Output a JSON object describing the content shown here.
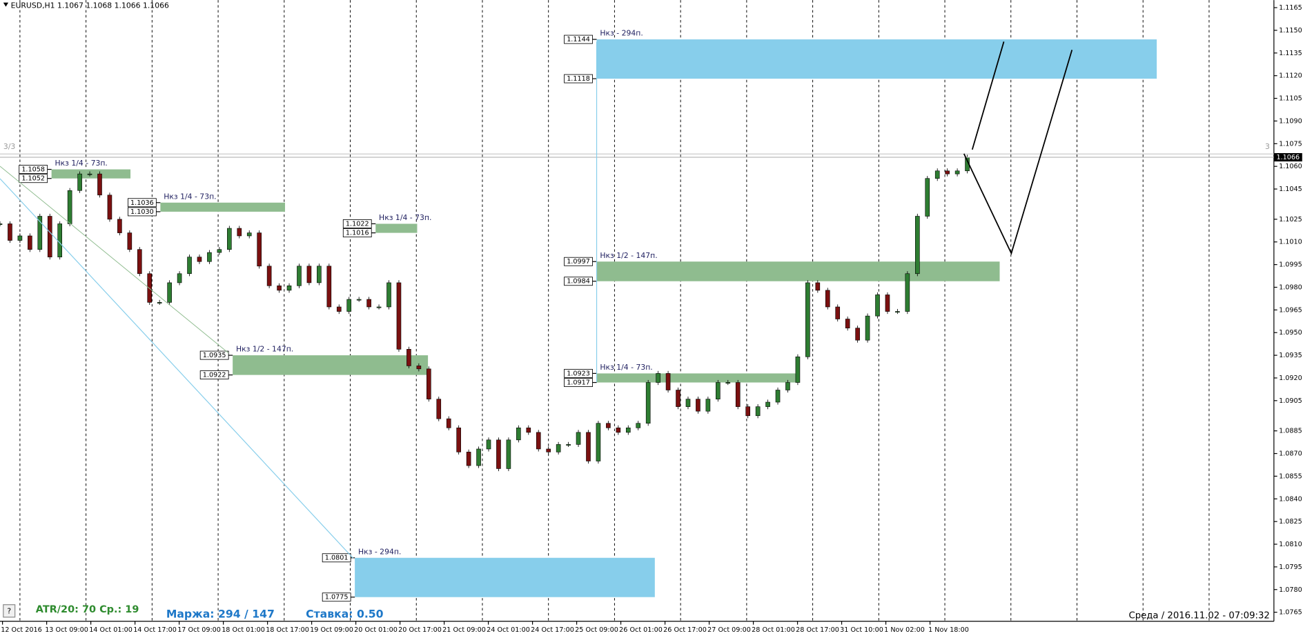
{
  "chart_data": {
    "type": "candlestick",
    "title": "EURUSD,H1  1.1067 1.1068 1.1066 1.1066",
    "window_left": "3/3",
    "window_right": "3",
    "current_price": 1.1066,
    "up_color": "#2e7d32",
    "down_color": "#7b1010",
    "ylim": [
      1.0759,
      1.117
    ],
    "yticks": [
      {
        "value": 1.1165,
        "label": "1.1165"
      },
      {
        "value": 1.115,
        "label": "1.1150"
      },
      {
        "value": 1.1135,
        "label": "1.1135"
      },
      {
        "value": 1.112,
        "label": "1.1120"
      },
      {
        "value": 1.1105,
        "label": "1.1105"
      },
      {
        "value": 1.109,
        "label": "1.1090"
      },
      {
        "value": 1.1075,
        "label": "1.1075"
      },
      {
        "value": 1.106,
        "label": "1.1060"
      },
      {
        "value": 1.1045,
        "label": "1.1045"
      },
      {
        "value": 1.1025,
        "label": "1.1025"
      },
      {
        "value": 1.101,
        "label": "1.1010"
      },
      {
        "value": 1.0995,
        "label": "1.0995"
      },
      {
        "value": 1.098,
        "label": "1.0980"
      },
      {
        "value": 1.0965,
        "label": "1.0965"
      },
      {
        "value": 1.095,
        "label": "1.0950"
      },
      {
        "value": 1.0935,
        "label": "1.0935"
      },
      {
        "value": 1.092,
        "label": "1.0920"
      },
      {
        "value": 1.0905,
        "label": "1.0905"
      },
      {
        "value": 1.0885,
        "label": "1.0885"
      },
      {
        "value": 1.087,
        "label": "1.0870"
      },
      {
        "value": 1.0855,
        "label": "1.0855"
      },
      {
        "value": 1.084,
        "label": "1.0840"
      },
      {
        "value": 1.0825,
        "label": "1.0825"
      },
      {
        "value": 1.081,
        "label": "1.0810"
      },
      {
        "value": 1.0795,
        "label": "1.0795"
      },
      {
        "value": 1.078,
        "label": "1.0780"
      },
      {
        "value": 1.0765,
        "label": "1.0765"
      }
    ],
    "time_labels": [
      "12 Oct 2016",
      "13 Oct 09:00",
      "14 Oct 01:00",
      "14 Oct 17:00",
      "17 Oct 09:00",
      "18 Oct 01:00",
      "18 Oct 17:00",
      "19 Oct 09:00",
      "20 Oct 01:00",
      "20 Oct 17:00",
      "21 Oct 09:00",
      "24 Oct 01:00",
      "24 Oct 17:00",
      "25 Oct 09:00",
      "26 Oct 01:00",
      "26 Oct 17:00",
      "27 Oct 09:00",
      "28 Oct 01:00",
      "28 Oct 17:00",
      "31 Oct 10:00",
      "1 Nov 02:00",
      "1 Nov 18:00"
    ],
    "prices": [
      1.1022,
      1.1011,
      1.1014,
      1.1005,
      1.1027,
      1.1,
      1.1022,
      1.1044,
      1.1055,
      1.1055,
      1.1041,
      1.1025,
      1.1016,
      1.1005,
      1.0989,
      1.097,
      1.097,
      1.0983,
      1.0989,
      1.1,
      1.0997,
      1.1003,
      1.1005,
      1.1019,
      1.1014,
      1.1016,
      1.0994,
      1.0981,
      1.0978,
      1.0981,
      1.0994,
      1.0983,
      1.0994,
      1.0967,
      1.0964,
      1.0972,
      1.0972,
      1.0967,
      1.0967,
      1.0983,
      1.0939,
      1.0928,
      1.0926,
      1.0906,
      1.0893,
      1.0887,
      1.0871,
      1.0862,
      1.0873,
      1.0879,
      1.086,
      1.0879,
      1.0887,
      1.0884,
      1.0873,
      1.0871,
      1.0876,
      1.0876,
      1.0884,
      1.0865,
      1.089,
      1.0887,
      1.0884,
      1.0887,
      1.089,
      1.0917,
      1.0923,
      1.0912,
      1.0901,
      1.0906,
      1.0898,
      1.0906,
      1.0917,
      1.0917,
      1.0901,
      1.0895,
      1.0901,
      1.0904,
      1.0912,
      1.0917,
      1.0934,
      1.0983,
      1.0978,
      1.0967,
      1.0959,
      1.0953,
      1.0945,
      1.0961,
      1.0975,
      1.0964,
      1.0964,
      1.0989,
      1.1027,
      1.1052,
      1.1057,
      1.1055,
      1.1057,
      1.1066
    ],
    "zones": [
      {
        "label": "Нкз 1/4 - 73п.",
        "top": 1.1058,
        "bottom": 1.1052,
        "color": "#8fbc8f"
      },
      {
        "label": "Нкз 1/4 - 73п.",
        "top": 1.1036,
        "bottom": {
          "value": 1.103,
          "label": "1.1030"
        },
        "color": "#8fbc8f"
      },
      {
        "label": "Нкз 1/4 - 73п.",
        "top": 1.1022,
        "bottom": 1.1016,
        "color": "#8fbc8f"
      },
      {
        "label": "Нкз 1/2 - 147п.",
        "top": 1.0935,
        "bottom": 1.0922,
        "color": "#8fbc8f"
      },
      {
        "label": "Нкз - 294п.",
        "top": 1.0801,
        "bottom": 1.0775,
        "color": "#87ceeb"
      },
      {
        "label": "Нкз - 294п.",
        "top": 1.1144,
        "bottom": 1.1118,
        "color": "#87ceeb"
      },
      {
        "label": "Нкз 1/2 - 147п.",
        "top": 1.0997,
        "bottom": 1.0984,
        "color": "#8fbc8f"
      },
      {
        "label": "Нкз 1/4 - 73п.",
        "top": 1.0923,
        "bottom": 1.0917,
        "color": "#8fbc8f"
      }
    ],
    "atr": "ATR/20: 70  Ср.: 19",
    "margin": "Маржа: 294 / 147",
    "rate": "Ставка: 0.50",
    "datetime": "Среда  /  2016.11.02  -  07:09:32",
    "help": "?"
  }
}
